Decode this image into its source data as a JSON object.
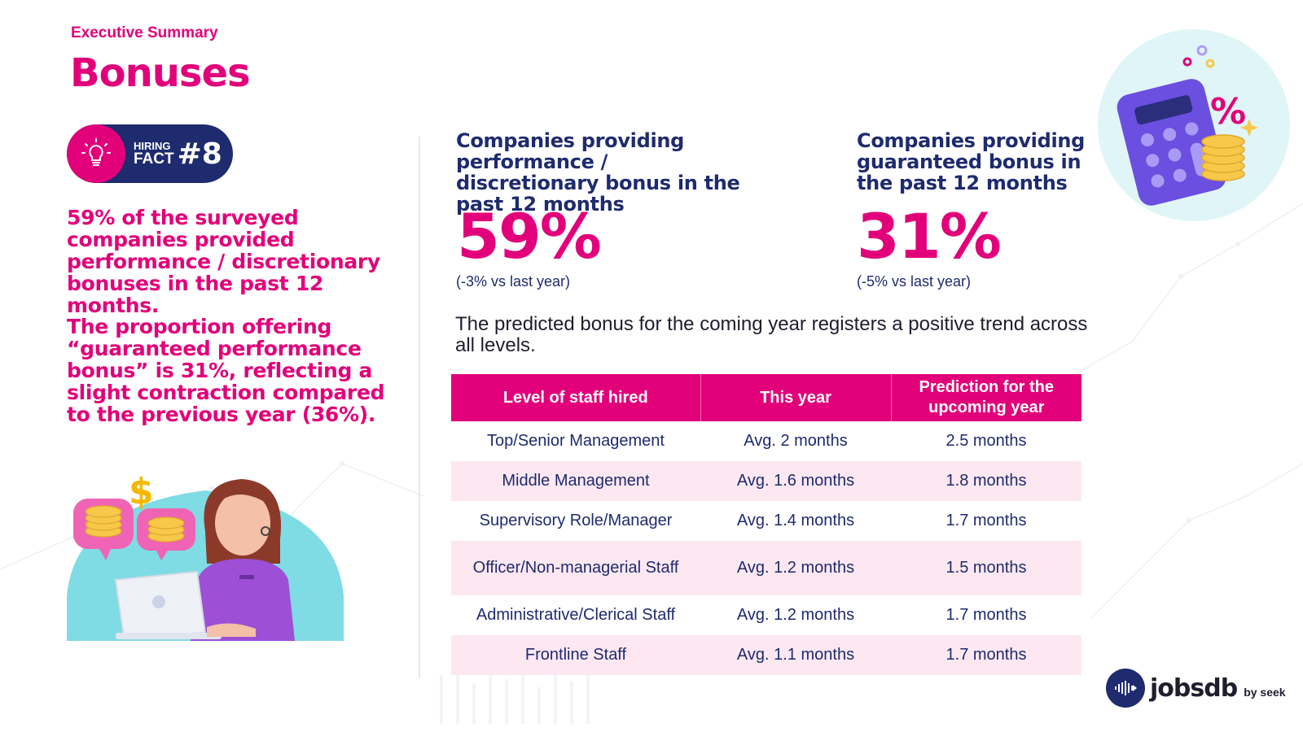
{
  "header": {
    "eyebrow": "Executive Summary",
    "title": "Bonuses"
  },
  "badge": {
    "line1": "HIRING",
    "line2": "FACT",
    "number": "#8",
    "icon": "lightbulb-icon"
  },
  "left": {
    "paragraph1": "59% of the surveyed companies provided performance / discretionary bonuses in the past 12 months.",
    "paragraph2": "The proportion offering “guaranteed performance bonus” is  31%,  reflecting a slight contraction compared to the previous year (36%)."
  },
  "stats": [
    {
      "heading": "Companies providing performance / discretionary bonus in the past 12 months",
      "value": "59%",
      "change": "(-3% vs last year)"
    },
    {
      "heading": "Companies providing guaranteed bonus in the past 12 months",
      "value": "31%",
      "change": "(-5% vs last year)"
    }
  ],
  "trend_text": "The predicted bonus for the coming year registers a positive trend across all levels.",
  "table": {
    "headers": [
      "Level of staff hired",
      "This year",
      "Prediction for the upcoming year"
    ],
    "rows": [
      [
        "Top/Senior Management",
        "Avg. 2 months",
        "2.5 months"
      ],
      [
        "Middle Management",
        "Avg. 1.6 months",
        "1.8 months"
      ],
      [
        "Supervisory Role/Manager",
        "Avg. 1.4 months",
        "1.7 months"
      ],
      [
        "Officer/Non-managerial Staff",
        "Avg. 1.2 months",
        "1.5  months"
      ],
      [
        "Administrative/Clerical Staff",
        "Avg. 1.2 months",
        "1.7  months"
      ],
      [
        "Frontline Staff",
        "Avg. 1.1 months",
        "1.7 months"
      ]
    ]
  },
  "illustrations": {
    "top_right": "calculator-percent-coins-illustration",
    "bottom_left": "woman-laptop-coins-dollar-illustration"
  },
  "logo": {
    "word": "jobsdb",
    "by": "by seek"
  },
  "colors": {
    "brand_pink": "#e2007a",
    "navy": "#1e2b6e",
    "row_alt": "#fde8f2"
  }
}
